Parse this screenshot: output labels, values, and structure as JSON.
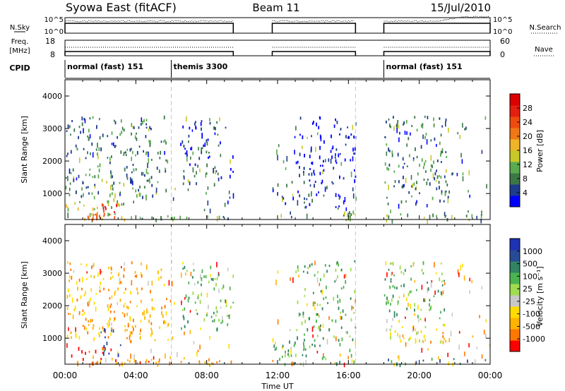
{
  "title_left": "Syowa East (fitACF)",
  "title_center": "Beam 11",
  "title_right": "15/Jul/2010",
  "nsky_label": "N.Sky",
  "nsky_ticks": [
    "10^5",
    "10^0"
  ],
  "nsearch_label": "N.Search",
  "nsearch_ticks": [
    "10^5",
    "10^0"
  ],
  "freq_label_line1": "Freq.",
  "freq_label_line2": "[MHz]",
  "freq_ticks": [
    "18",
    "8"
  ],
  "nave_label": "Nave",
  "nave_ticks": [
    "60",
    "0"
  ],
  "cpid_label": "CPID",
  "cpid_segments": [
    {
      "label": "normal (fast) 151",
      "start": 0,
      "end": 6.0
    },
    {
      "label": "themis 3300",
      "start": 6.0,
      "end": 18.0
    },
    {
      "label": "normal (fast) 151",
      "start": 18.0,
      "end": 24.0
    }
  ],
  "data_gaps": [
    [
      9.5,
      11.7
    ],
    [
      16.4,
      18.0
    ]
  ],
  "colors": {
    "power_scale": [
      "#0000ff",
      "#1e3c8c",
      "#3c7846",
      "#5aaa50",
      "#c8c828",
      "#f0b428",
      "#f07814",
      "#f04b0f",
      "#e61e0f",
      "#dc0000"
    ],
    "velocity_scale": [
      "#ff0000",
      "#ff7800",
      "#ffb400",
      "#ffdc00",
      "#c8c8c8",
      "#a0dc50",
      "#4bb450",
      "#328264",
      "#284b96",
      "#1e32b4"
    ]
  },
  "chart_data": [
    {
      "type": "heatmap",
      "quantity": "power",
      "ylabel": "Slant Range [km]",
      "xlim": [
        0,
        24
      ],
      "ylim": [
        200,
        4500
      ],
      "yticks": [
        1000,
        2000,
        3000,
        4000
      ],
      "colorbar": {
        "label": "Power [dB]",
        "range": [
          0,
          32
        ],
        "ticks": [
          "4",
          "8",
          "12",
          "16",
          "20",
          "24",
          "28"
        ]
      },
      "patches": [
        {
          "t": [
            0.0,
            3.4
          ],
          "r": [
            200,
            800
          ],
          "level": 4
        },
        {
          "t": [
            2.0,
            3.0
          ],
          "r": [
            200,
            700
          ],
          "level": 8
        },
        {
          "t": [
            0.8,
            2.2
          ],
          "r": [
            200,
            400
          ],
          "level": 6
        },
        {
          "t": [
            2.3,
            3.4
          ],
          "r": [
            700,
            1400
          ],
          "level": 3
        },
        {
          "t": [
            0.0,
            5.8
          ],
          "r": [
            900,
            3400
          ],
          "level": 2
        },
        {
          "t": [
            3.5,
            9.5
          ],
          "r": [
            200,
            350
          ],
          "level": 2
        },
        {
          "t": [
            6.5,
            9.5
          ],
          "r": [
            1300,
            3300
          ],
          "level": 1
        },
        {
          "t": [
            11.7,
            15.5
          ],
          "r": [
            600,
            1400
          ],
          "level": 1
        },
        {
          "t": [
            13.0,
            16.4
          ],
          "r": [
            1400,
            3400
          ],
          "level": 0
        },
        {
          "t": [
            15.6,
            16.4
          ],
          "r": [
            200,
            500
          ],
          "level": 3
        },
        {
          "t": [
            18.0,
            23.8
          ],
          "r": [
            200,
            400
          ],
          "level": 3
        },
        {
          "t": [
            18.0,
            22.0
          ],
          "r": [
            700,
            1900
          ],
          "level": 2
        },
        {
          "t": [
            18.0,
            21.5
          ],
          "r": [
            1900,
            3400
          ],
          "level": 2
        }
      ]
    },
    {
      "type": "heatmap",
      "quantity": "velocity",
      "ylabel": "Slant Range [km]",
      "xlabel": "Time UT",
      "xlim": [
        0,
        24
      ],
      "ylim": [
        200,
        4500
      ],
      "yticks": [
        1000,
        2000,
        3000,
        4000
      ],
      "xticks": [
        "00:00",
        "04:00",
        "08:00",
        "12:00",
        "16:00",
        "20:00",
        "00:00"
      ],
      "colorbar": {
        "label": "Velocity [m s⁻¹]",
        "range": [
          -1000,
          1000
        ],
        "ticks": [
          "1000",
          "500",
          "100",
          "25",
          "-25",
          "-100",
          "-500",
          "-1000"
        ]
      },
      "patches": [
        {
          "t": [
            0.0,
            3.4
          ],
          "r": [
            200,
            800
          ],
          "level": 1
        },
        {
          "t": [
            2.0,
            3.2
          ],
          "r": [
            500,
            1400
          ],
          "level": 8
        },
        {
          "t": [
            3.4,
            6.0
          ],
          "r": [
            200,
            400
          ],
          "level": 1
        },
        {
          "t": [
            0.0,
            5.8
          ],
          "r": [
            900,
            3400
          ],
          "level": 2
        },
        {
          "t": [
            6.0,
            9.5
          ],
          "r": [
            200,
            320
          ],
          "level": 2
        },
        {
          "t": [
            6.5,
            9.5
          ],
          "r": [
            1300,
            3300
          ],
          "level": 6
        },
        {
          "t": [
            11.7,
            16.4
          ],
          "r": [
            200,
            1000
          ],
          "level": 6
        },
        {
          "t": [
            13.0,
            16.4
          ],
          "r": [
            1000,
            3400
          ],
          "level": 6
        },
        {
          "t": [
            18.0,
            23.8
          ],
          "r": [
            200,
            400
          ],
          "level": 7
        },
        {
          "t": [
            18.0,
            21.5
          ],
          "r": [
            900,
            1600
          ],
          "level": 4
        },
        {
          "t": [
            19.5,
            21.5
          ],
          "r": [
            900,
            1300
          ],
          "level": 2
        },
        {
          "t": [
            18.0,
            21.5
          ],
          "r": [
            1600,
            3400
          ],
          "level": 6
        }
      ]
    }
  ]
}
